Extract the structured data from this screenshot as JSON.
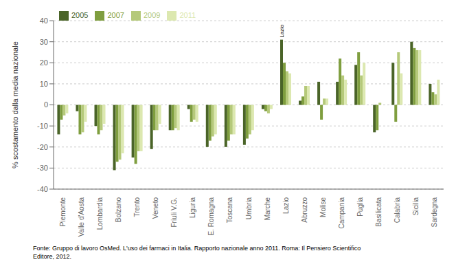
{
  "chart_data": {
    "type": "bar",
    "categories": [
      "Piemonte",
      "Valle d'Aosta",
      "Lombardia",
      "Bolzano",
      "Trento",
      "Veneto",
      "Friuli V.G.",
      "Liguria",
      "E. Romagna",
      "Toscana",
      "Umbria",
      "Marche",
      "Lazio",
      "Abruzzo",
      "Molise",
      "Campania",
      "Puglia",
      "Basilicata",
      "Calabria",
      "Sicilia",
      "Sardegna"
    ],
    "series": [
      {
        "name": "2005",
        "color": "#4a6428",
        "values": [
          -14,
          -3,
          -10,
          -31,
          -25,
          -21,
          -12,
          -2,
          -20,
          -20,
          -19,
          -2,
          31,
          2,
          11,
          11,
          19,
          -13,
          20,
          30,
          10
        ]
      },
      {
        "name": "2007",
        "color": "#7f9e3f",
        "values": [
          -7,
          -14,
          -14,
          -27,
          -28,
          -12,
          -12,
          -8,
          -17,
          -17,
          -16,
          -3,
          20,
          4,
          -7,
          22,
          25,
          -12,
          -8,
          27,
          6
        ]
      },
      {
        "name": "2009",
        "color": "#b5c97a",
        "values": [
          -5,
          -13,
          -12,
          -26,
          -22,
          -12,
          -11,
          -7,
          -15,
          -14,
          -14,
          -4,
          16,
          9,
          3,
          14,
          14,
          1,
          25,
          26,
          5
        ]
      },
      {
        "name": "2011",
        "color": "#dce8b0",
        "values": [
          -4,
          -8,
          -9,
          -23,
          -22,
          -9,
          -12,
          -8,
          -14,
          -14,
          -12,
          -2,
          15,
          9,
          3,
          12,
          20,
          0,
          15,
          26,
          12
        ]
      }
    ],
    "ylabel": "% scostamento dalla media nazionale",
    "ylim": [
      -40,
      40
    ],
    "yticks": [
      -40,
      -30,
      -20,
      -10,
      0,
      10,
      20,
      30,
      40
    ],
    "grid": true,
    "legend": "upper left",
    "annotations": [
      {
        "text": "Lazio",
        "category": "Lazio",
        "series": "2005"
      }
    ],
    "footnote": "Fonte: Gruppo di lavoro OsMed. L'uso dei farmaci in Italia. Rapporto nazionale anno 2011. Roma: Il Pensiero Scientifico\nEditore, 2012."
  }
}
